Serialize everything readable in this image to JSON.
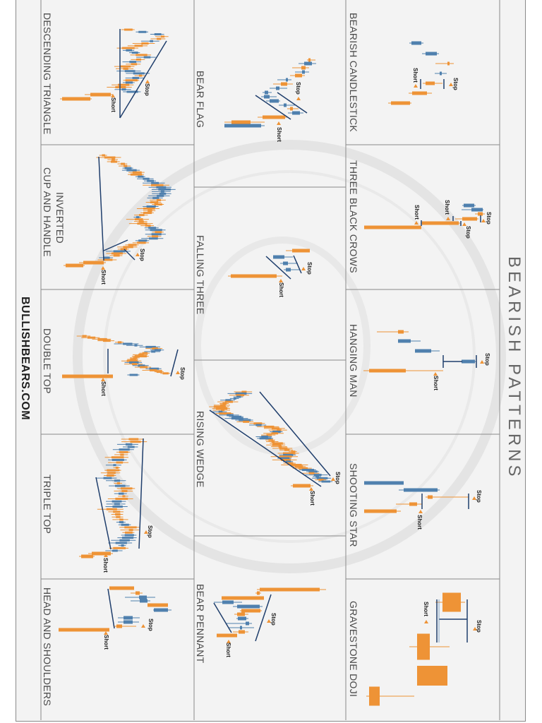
{
  "header": {
    "title": "BEARISH PATTERNS"
  },
  "footer": {
    "brand": "BULLISHBEARS.COM"
  },
  "labels": {
    "short": "Short",
    "stop": "Stop"
  },
  "patterns": {
    "bearish_candlestick": "BEARISH CANDLESTICK",
    "three_black_crows": "THREE BLACK CROWS",
    "hanging_man": "HANGING MAN",
    "shooting_star": "SHOOTING STAR",
    "gravestone_doji": "GRAVESTONE DOJI",
    "bear_flag": "BEAR FLAG",
    "falling_three": "FALLING THREE",
    "rising_wedge": "RISING WEDGE",
    "bear_pennant": "BEAR PENNANT",
    "descending_triangle": "DESCENDING TRIANGLE",
    "inverted_cup_line1": "INVERTED",
    "inverted_cup_line2": "CUP AND HANDLE",
    "double_top": "DOUBLE TOP",
    "triple_top": "TRIPLE TOP",
    "head_and_shoulders": "HEAD AND SHOULDERS"
  },
  "colors": {
    "bearish_candle": "#ee9336",
    "bullish_candle": "#4f80ae",
    "trend_line": "#1f3e6c",
    "panel": "#f3f3f3",
    "grid": "#8a8a8a"
  }
}
